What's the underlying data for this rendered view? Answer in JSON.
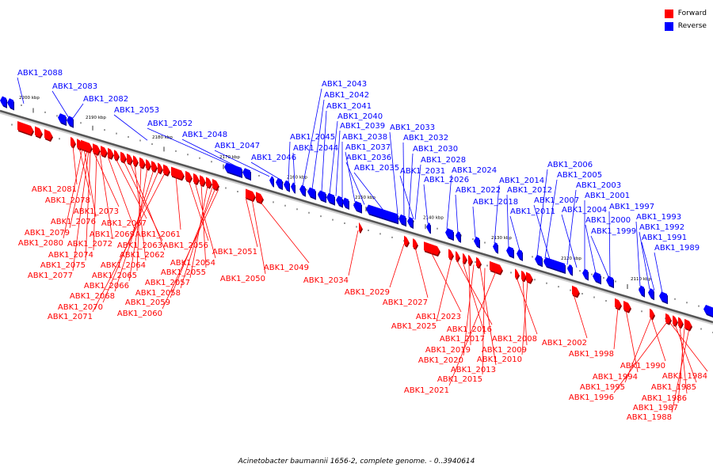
{
  "caption": "Acinetobacter baumannii 1656-2, complete genome. - 0..3940614",
  "legend": [
    {
      "label": "Forward",
      "color": "#ff0000"
    },
    {
      "label": "Reverse",
      "color": "#0000ff"
    }
  ],
  "colors": {
    "forward": "#ff0000",
    "reverse": "#0000ff",
    "backbone": "#555555"
  },
  "scale_labels": [
    "2200 kbp",
    "2190 kbp",
    "2180 kbp",
    "2170 kbp",
    "2160 kbp",
    "2150 kbp",
    "2140 kbp",
    "2130 kbp",
    "2120 kbp",
    "2110 kbp"
  ],
  "reverse_genes": [
    "ABK1_2088",
    "ABK1_2083",
    "ABK1_2082",
    "ABK1_2053",
    "ABK1_2052",
    "ABK1_2048",
    "ABK1_2047",
    "ABK1_2046",
    "ABK1_2045",
    "ABK1_2044",
    "ABK1_2043",
    "ABK1_2042",
    "ABK1_2041",
    "ABK1_2040",
    "ABK1_2039",
    "ABK1_2038",
    "ABK1_2037",
    "ABK1_2036",
    "ABK1_2035",
    "ABK1_2033",
    "ABK1_2032",
    "ABK1_2030",
    "ABK1_2028",
    "ABK1_2031",
    "ABK1_2026",
    "ABK1_2024",
    "ABK1_2022",
    "ABK1_2018",
    "ABK1_2014",
    "ABK1_2012",
    "ABK1_2011",
    "ABK1_2006",
    "ABK1_2005",
    "ABK1_2003",
    "ABK1_2007",
    "ABK1_2001",
    "ABK1_2004",
    "ABK1_2000",
    "ABK1_1999",
    "ABK1_1997",
    "ABK1_1993",
    "ABK1_1992",
    "ABK1_1991",
    "ABK1_1989"
  ],
  "forward_genes": [
    "ABK1_2081",
    "ABK1_2078",
    "ABK1_2076",
    "ABK1_2073",
    "ABK1_2079",
    "ABK1_2080",
    "ABK1_2072",
    "ABK1_2074",
    "ABK1_2075",
    "ABK1_2077",
    "ABK1_2069",
    "ABK1_2067",
    "ABK1_2063",
    "ABK1_2062",
    "ABK1_2064",
    "ABK1_2065",
    "ABK1_2066",
    "ABK1_2068",
    "ABK1_2070",
    "ABK1_2071",
    "ABK1_2061",
    "ABK1_2056",
    "ABK1_2054",
    "ABK1_2055",
    "ABK1_2057",
    "ABK1_2058",
    "ABK1_2059",
    "ABK1_2060",
    "ABK1_2051",
    "ABK1_2050",
    "ABK1_2049",
    "ABK1_2034",
    "ABK1_2029",
    "ABK1_2027",
    "ABK1_2023",
    "ABK1_2025",
    "ABK1_2016",
    "ABK1_2017",
    "ABK1_2019",
    "ABK1_2020",
    "ABK1_2013",
    "ABK1_2015",
    "ABK1_2021",
    "ABK1_2008",
    "ABK1_2009",
    "ABK1_2010",
    "ABK1_2002",
    "ABK1_1998",
    "ABK1_1994",
    "ABK1_1995",
    "ABK1_1996",
    "ABK1_1990",
    "ABK1_1984",
    "ABK1_1985",
    "ABK1_1986",
    "ABK1_1987",
    "ABK1_1988"
  ]
}
